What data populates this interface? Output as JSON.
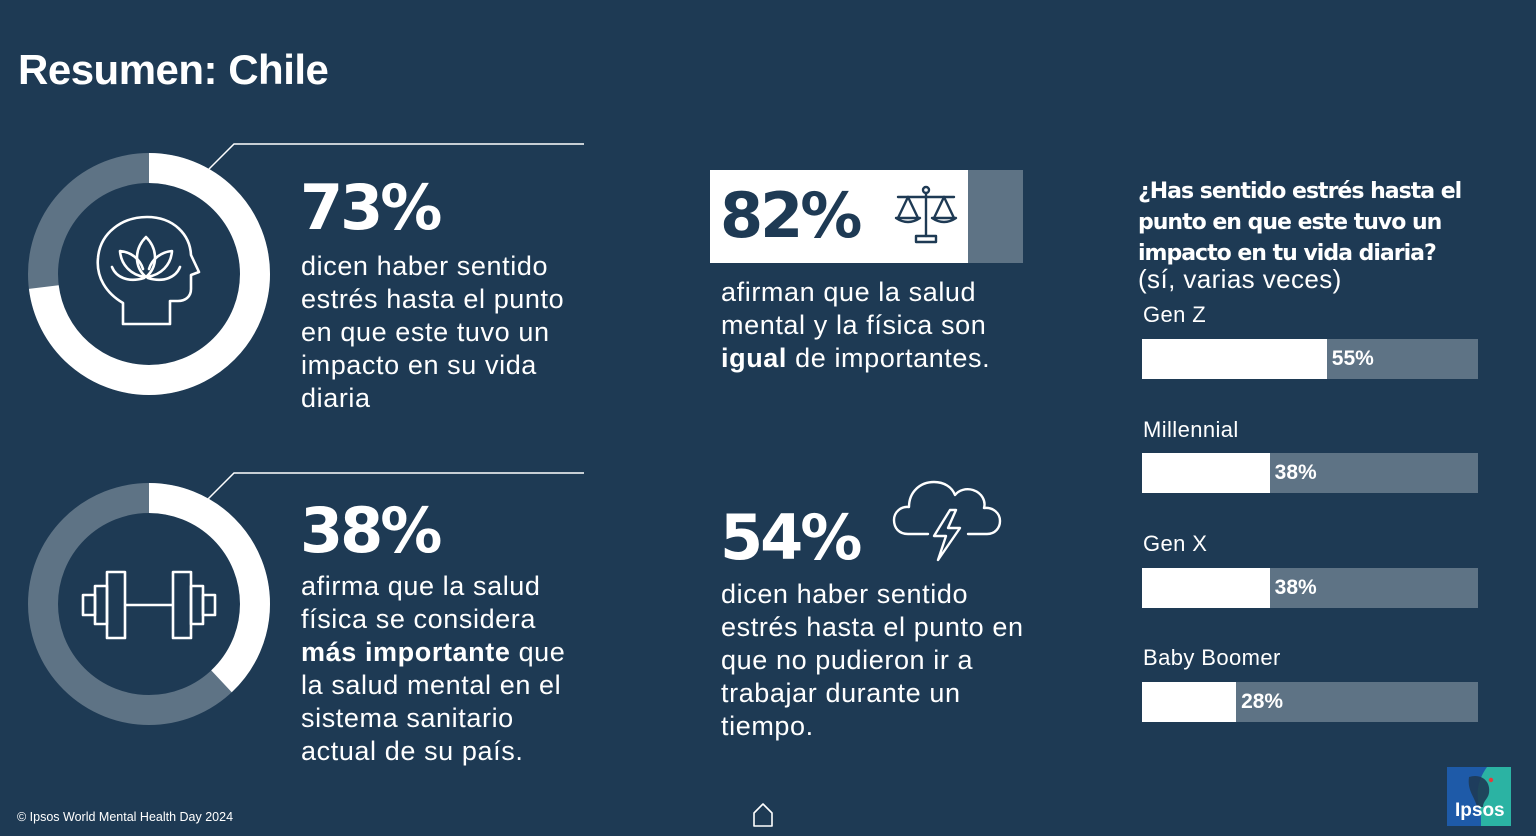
{
  "title": "Resumen: Chile",
  "stat1": {
    "value": "73%",
    "percent": 73,
    "text": "dicen haber sentido estrés hasta el punto en que este tuvo un impacto en su vida diaria",
    "icon": "head-lotus-icon"
  },
  "stat2": {
    "value": "38%",
    "percent": 38,
    "text_a": "afirma que la salud física se considera",
    "text_bold": "más importante",
    "text_b": "que la salud mental en el sistema sanitario actual de su país.",
    "icon": "dumbbell-icon"
  },
  "stat3": {
    "value": "82%",
    "percent": 82,
    "text_a": "afirman que la salud mental y la física son",
    "text_bold": "igual",
    "text_b": "de importantes.",
    "icon": "balance-scale-icon"
  },
  "stat4": {
    "value": "54%",
    "text": "dicen haber sentido estrés hasta el punto en que no pudieron ir a trabajar durante un tiempo.",
    "icon": "storm-cloud-icon"
  },
  "question": {
    "title": "¿Has sentido estrés hasta el punto en que este tuvo un impacto en tu vida diaria?",
    "subtitle": "(sí, varias veces)"
  },
  "chart_data": {
    "type": "bar",
    "orientation": "horizontal",
    "title": "¿Has sentido estrés hasta el punto en que este tuvo un impacto en tu vida diaria?",
    "subtitle": "(sí, varias veces)",
    "categories": [
      "Gen Z",
      "Millennial",
      "Gen X",
      "Baby Boomer"
    ],
    "values": [
      55,
      38,
      38,
      28
    ],
    "value_labels": [
      "55%",
      "38%",
      "38%",
      "28%"
    ],
    "xlim": [
      0,
      100
    ],
    "grid": false
  },
  "colors": {
    "background": "#1e3a54",
    "track": "#5e7385",
    "fill": "#ffffff"
  },
  "footer": "© Ipsos World Mental Health Day 2024",
  "home_icon": "home-icon",
  "logo_text": "Ipsos"
}
